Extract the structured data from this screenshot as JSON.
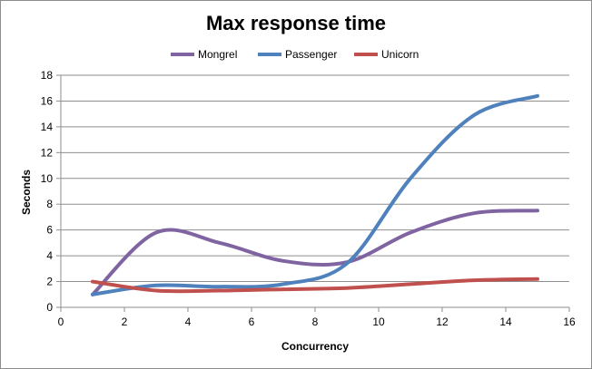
{
  "chart_data": {
    "type": "line",
    "title": "Max response time",
    "xlabel": "Concurrency",
    "ylabel": "Seconds",
    "xlim": [
      0,
      16
    ],
    "ylim": [
      0,
      18
    ],
    "x_ticks": [
      0,
      2,
      4,
      6,
      8,
      10,
      12,
      14,
      16
    ],
    "y_ticks": [
      0,
      2,
      4,
      6,
      8,
      10,
      12,
      14,
      16,
      18
    ],
    "grid": "horizontal",
    "legend_position": "top",
    "x": [
      1,
      3,
      5,
      7,
      9,
      11,
      13,
      15
    ],
    "series": [
      {
        "name": "Mongrel",
        "color": "#8064a2",
        "values": [
          1.0,
          5.8,
          5.0,
          3.6,
          3.5,
          5.8,
          7.3,
          7.5
        ]
      },
      {
        "name": "Passenger",
        "color": "#4f81bd",
        "values": [
          1.0,
          1.7,
          1.6,
          1.8,
          3.4,
          10.0,
          14.9,
          16.4
        ]
      },
      {
        "name": "Unicorn",
        "color": "#c0504d",
        "values": [
          2.0,
          1.3,
          1.3,
          1.4,
          1.5,
          1.8,
          2.1,
          2.2
        ]
      }
    ]
  }
}
